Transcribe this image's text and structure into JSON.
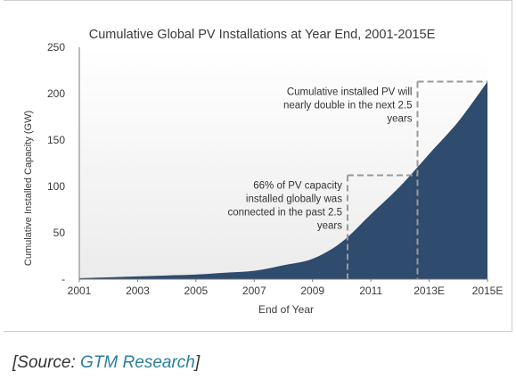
{
  "chart_data": {
    "type": "area",
    "title": "Cumulative Global PV Installations at Year End, 2001-2015E",
    "xlabel": "End of Year",
    "ylabel": "Cumulative Installed Capacity (GW)",
    "x_tick_labels": [
      "2001",
      "2003",
      "2005",
      "2007",
      "2009",
      "2011",
      "2013E",
      "2015E"
    ],
    "x_tick_values": [
      2001,
      2003,
      2005,
      2007,
      2009,
      2011,
      2013,
      2015
    ],
    "y_ticks": [
      0,
      50,
      100,
      150,
      200,
      250
    ],
    "y_tick_labels": [
      "-",
      "50",
      "100",
      "150",
      "200",
      "250"
    ],
    "xlim": [
      2001,
      2015
    ],
    "ylim": [
      0,
      250
    ],
    "grid": false,
    "series": [
      {
        "x": [
          2001,
          2002,
          2003,
          2004,
          2005,
          2006,
          2007,
          2008,
          2009,
          2010,
          2011,
          2012,
          2013,
          2014,
          2015
        ],
        "values": [
          1,
          2,
          3,
          4,
          5,
          7,
          9,
          15,
          22,
          40,
          70,
          100,
          135,
          170,
          213
        ],
        "color": "#2f4b6e"
      }
    ],
    "annotations": [
      {
        "text_lines": [
          "66% of PV capacity",
          "installed globally was",
          "connected in the past 2.5",
          "years"
        ],
        "x": 2010.2,
        "y": 112
      },
      {
        "text_lines": [
          "Cumulative installed PV will",
          "nearly double in the next 2.5",
          "years"
        ],
        "x": 2012.6,
        "y": 213
      }
    ]
  },
  "source": {
    "prefix": "[Source: ",
    "name": "GTM Research",
    "suffix": "]"
  }
}
